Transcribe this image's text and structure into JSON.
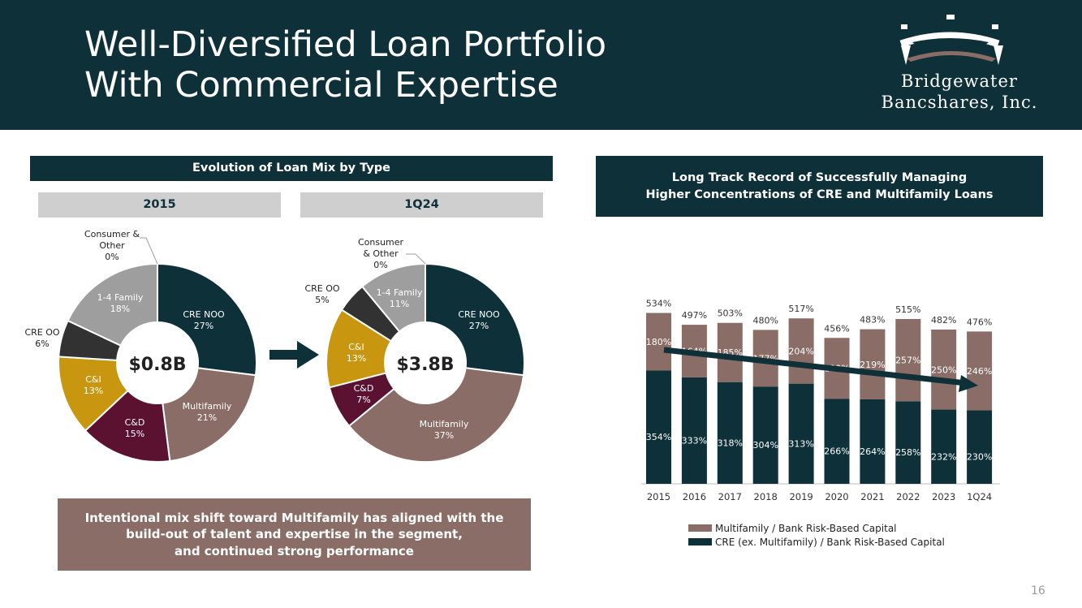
{
  "header": {
    "title_line1": "Well-Diversified Loan Portfolio",
    "title_line2": "With Commercial Expertise",
    "logo_line1": "Bridgewater",
    "logo_line2": "Bancshares, Inc."
  },
  "left": {
    "section_title": "Evolution of Loan Mix by Type",
    "period1": "2015",
    "period2": "1Q24",
    "callout_line1": "Intentional mix shift toward Multifamily has aligned with the",
    "callout_line2": "build-out of talent and expertise in the segment,",
    "callout_line3": "and continued strong performance"
  },
  "right": {
    "section_title_line1": "Long Track Record of Successfully Managing",
    "section_title_line2": "Higher Concentrations of CRE and Multifamily Loans"
  },
  "page_number": "16",
  "colors": {
    "navy": "#0e3038",
    "taupe": "#8a6d66",
    "maroon": "#5b1230",
    "gold": "#c9960f",
    "charcoal": "#323232",
    "gray": "#9e9e9e",
    "light_gray": "#cfcfcf"
  },
  "chart_data": [
    {
      "type": "pie",
      "variant": "donut",
      "period": "2015",
      "center_label": "$0.8B",
      "slices": [
        {
          "name": "CRE NOO",
          "value": 27,
          "label": "27%",
          "color": "#0e3038"
        },
        {
          "name": "Multifamily",
          "value": 21,
          "label": "21%",
          "color": "#8a6d66"
        },
        {
          "name": "C&D",
          "value": 15,
          "label": "15%",
          "color": "#5b1230"
        },
        {
          "name": "C&I",
          "value": 13,
          "label": "13%",
          "color": "#c9960f"
        },
        {
          "name": "CRE OO",
          "value": 6,
          "label": "6%",
          "color": "#323232"
        },
        {
          "name": "1-4 Family",
          "value": 18,
          "label": "18%",
          "color": "#9e9e9e"
        },
        {
          "name": "Consumer & Other",
          "value": 0,
          "label": "0%",
          "color": "#cfcfcf"
        }
      ]
    },
    {
      "type": "pie",
      "variant": "donut",
      "period": "1Q24",
      "center_label": "$3.8B",
      "slices": [
        {
          "name": "CRE NOO",
          "value": 27,
          "label": "27%",
          "color": "#0e3038"
        },
        {
          "name": "Multifamily",
          "value": 37,
          "label": "37%",
          "color": "#8a6d66"
        },
        {
          "name": "C&D",
          "value": 7,
          "label": "7%",
          "color": "#5b1230"
        },
        {
          "name": "C&I",
          "value": 13,
          "label": "13%",
          "color": "#c9960f"
        },
        {
          "name": "CRE OO",
          "value": 5,
          "label": "5%",
          "color": "#323232"
        },
        {
          "name": "1-4 Family",
          "value": 11,
          "label": "11%",
          "color": "#9e9e9e"
        },
        {
          "name": "Consumer & Other",
          "value": 0,
          "label": "0%",
          "color": "#cfcfcf"
        }
      ]
    },
    {
      "type": "bar",
      "stacked": true,
      "categories": [
        "2015",
        "2016",
        "2017",
        "2018",
        "2019",
        "2020",
        "2021",
        "2022",
        "2023",
        "1Q24"
      ],
      "series": [
        {
          "name": "CRE (ex. Multifamily) / Bank Risk-Based Capital",
          "color": "#0e3038",
          "values": [
            354,
            333,
            318,
            304,
            313,
            266,
            264,
            258,
            232,
            230
          ]
        },
        {
          "name": "Multifamily / Bank Risk-Based Capital",
          "color": "#8a6d66",
          "values": [
            180,
            164,
            185,
            177,
            204,
            190,
            219,
            257,
            250,
            246
          ]
        }
      ],
      "totals": [
        534,
        497,
        503,
        480,
        517,
        456,
        483,
        515,
        482,
        476
      ],
      "ylim": [
        0,
        600
      ],
      "trend_arrow": "downward",
      "legend_position": "bottom"
    }
  ]
}
